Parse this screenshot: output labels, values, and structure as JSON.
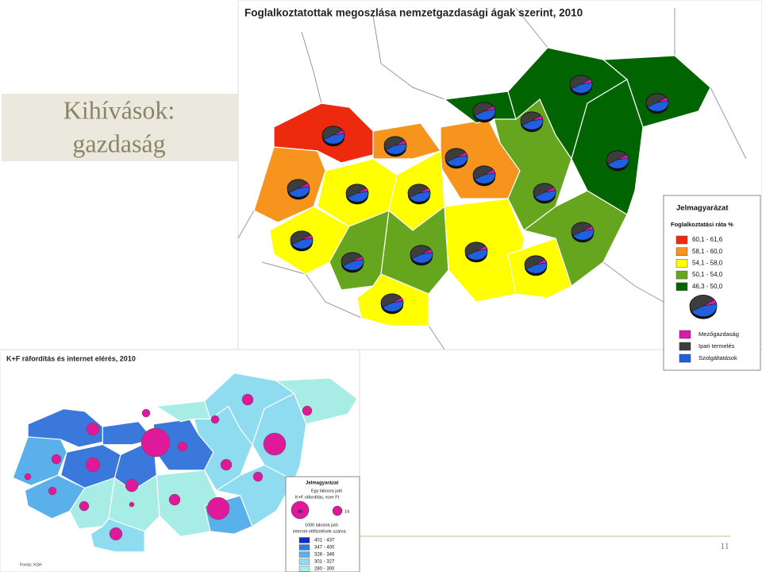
{
  "slide": {
    "title": [
      "Kihívások:",
      "gazdaság"
    ],
    "page_number": 11
  },
  "map1": {
    "title": "Foglalkoztatottak megoszlása nemzetgazdasági ágak szerint, 2010",
    "legend": {
      "heading": "Jelmagyarázat",
      "subtitle": "Foglalkoztatási ráta %",
      "ranges": [
        "60,1 - 61,6",
        "58,1 - 60,0",
        "54,1 - 58,0",
        "50,1 - 54,0",
        "46,3 - 50,0"
      ],
      "sectors": [
        "Mezőgazdaság",
        "Ipari termelés",
        "Szolgáltatások"
      ]
    }
  },
  "map2": {
    "title": "K+F ráfordítás és internet elérés, 2010",
    "legend": {
      "heading": "Jelmagyarázat",
      "size_title": [
        "Egy lakosra jutó",
        "K+F ráfordítás, ezer Ft"
      ],
      "size_values": [
        40,
        14
      ],
      "color_title": [
        "1000 lakosra jutó",
        "internet előfizetések száma"
      ],
      "ranges": [
        "401 - 437",
        "347 - 400",
        "328 - 346",
        "301 - 327",
        "280 - 300"
      ]
    },
    "source": "Forrás: KSH"
  }
}
